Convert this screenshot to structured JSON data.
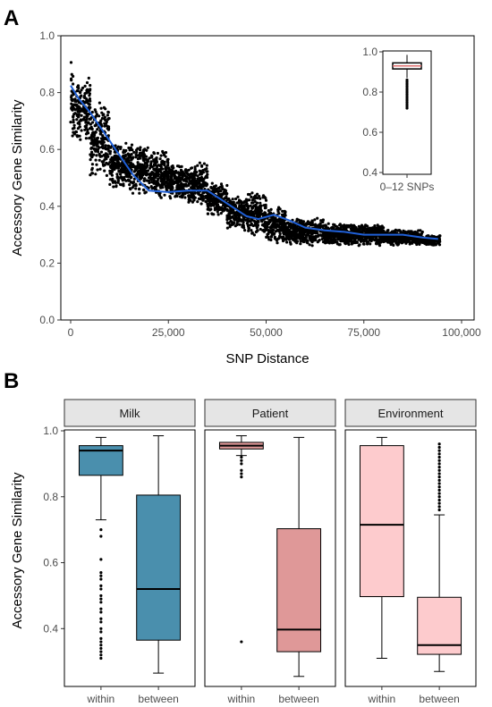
{
  "colors": {
    "scatter": "#000000",
    "smooth": "#1f5fd6",
    "milk": "#4a8fad",
    "patient": "#df9898",
    "environment": "#fdcbcd",
    "strip_fill": "#e5e5e5"
  },
  "chart_data": [
    {
      "panel": "A",
      "type": "scatter",
      "xlabel": "SNP Distance",
      "ylabel": "Accessory Gene Similarity",
      "xlim": [
        0,
        100000
      ],
      "ylim": [
        0,
        1
      ],
      "x_ticks": [
        0,
        25000,
        50000,
        75000,
        100000
      ],
      "x_tick_labels": [
        "0",
        "25,000",
        "50,000",
        "75,000",
        "100,000"
      ],
      "y_ticks": [
        0,
        0.2,
        0.4,
        0.6,
        0.8,
        1.0
      ],
      "y_tick_labels": [
        "0.0",
        "0.2",
        "0.4",
        "0.6",
        "0.8",
        "1.0"
      ],
      "smooth_line": {
        "x": [
          0,
          2000,
          5000,
          8000,
          12000,
          16000,
          20000,
          25000,
          30000,
          35000,
          40000,
          45000,
          48000,
          52000,
          56000,
          60000,
          65000,
          70000,
          75000,
          80000,
          85000,
          90000,
          94000
        ],
        "y": [
          0.825,
          0.78,
          0.73,
          0.67,
          0.59,
          0.51,
          0.455,
          0.45,
          0.455,
          0.455,
          0.41,
          0.365,
          0.355,
          0.37,
          0.35,
          0.325,
          0.315,
          0.31,
          0.3,
          0.3,
          0.3,
          0.29,
          0.285
        ]
      },
      "scatter_bands": [
        {
          "x0": 0,
          "x1": 600,
          "ymin": 0.58,
          "ymax": 0.99
        },
        {
          "x0": 600,
          "x1": 5000,
          "ymin": 0.62,
          "ymax": 0.86
        },
        {
          "x0": 5000,
          "x1": 10000,
          "ymin": 0.5,
          "ymax": 0.77
        },
        {
          "x0": 10000,
          "x1": 15000,
          "ymin": 0.46,
          "ymax": 0.63
        },
        {
          "x0": 15000,
          "x1": 20000,
          "ymin": 0.44,
          "ymax": 0.62
        },
        {
          "x0": 20000,
          "x1": 25000,
          "ymin": 0.42,
          "ymax": 0.6
        },
        {
          "x0": 25000,
          "x1": 30000,
          "ymin": 0.42,
          "ymax": 0.55
        },
        {
          "x0": 30000,
          "x1": 35000,
          "ymin": 0.4,
          "ymax": 0.56
        },
        {
          "x0": 35000,
          "x1": 40000,
          "ymin": 0.36,
          "ymax": 0.49
        },
        {
          "x0": 40000,
          "x1": 45000,
          "ymin": 0.31,
          "ymax": 0.44
        },
        {
          "x0": 45000,
          "x1": 50000,
          "ymin": 0.29,
          "ymax": 0.45
        },
        {
          "x0": 50000,
          "x1": 55000,
          "ymin": 0.27,
          "ymax": 0.4
        },
        {
          "x0": 55000,
          "x1": 65000,
          "ymin": 0.26,
          "ymax": 0.36
        },
        {
          "x0": 65000,
          "x1": 80000,
          "ymin": 0.26,
          "ymax": 0.34
        },
        {
          "x0": 80000,
          "x1": 90000,
          "ymin": 0.26,
          "ymax": 0.32
        },
        {
          "x0": 90000,
          "x1": 94500,
          "ymin": 0.26,
          "ymax": 0.3
        }
      ],
      "inset": {
        "type": "box",
        "category": "0–12 SNPs",
        "ylim": [
          0.4,
          1.0
        ],
        "y_ticks": [
          0.4,
          0.6,
          0.8,
          1.0
        ],
        "y_tick_labels": [
          "0.4",
          "0.6",
          "0.8",
          "1.0"
        ],
        "box": {
          "q1": 0.915,
          "median": 0.93,
          "q3": 0.945,
          "whisker_low": 0.87,
          "whisker_high": 0.985
        },
        "outliers": [
          0.86,
          0.85,
          0.84,
          0.83,
          0.82,
          0.81,
          0.8,
          0.79,
          0.78,
          0.77,
          0.76,
          0.75,
          0.74,
          0.73,
          0.72
        ]
      }
    },
    {
      "panel": "B",
      "type": "box",
      "ylabel": "Accessory Gene Similarity",
      "ylim": [
        0.23,
        1.0
      ],
      "y_ticks": [
        0.4,
        0.6,
        0.8,
        1.0
      ],
      "y_tick_labels": [
        "0.4",
        "0.6",
        "0.8",
        "1.0"
      ],
      "categories": [
        "within",
        "between"
      ],
      "facets": [
        {
          "name": "Milk",
          "color_key": "milk",
          "boxes": [
            {
              "category": "within",
              "q1": 0.865,
              "median": 0.94,
              "q3": 0.955,
              "whisker_low": 0.73,
              "whisker_high": 0.98,
              "outliers": [
                0.7,
                0.68,
                0.61,
                0.57,
                0.56,
                0.55,
                0.53,
                0.52,
                0.5,
                0.49,
                0.48,
                0.46,
                0.45,
                0.43,
                0.42,
                0.4,
                0.39,
                0.37,
                0.36,
                0.35,
                0.34,
                0.33,
                0.32,
                0.31
              ]
            },
            {
              "category": "between",
              "q1": 0.365,
              "median": 0.52,
              "q3": 0.805,
              "whisker_low": 0.265,
              "whisker_high": 0.985,
              "outliers": []
            }
          ]
        },
        {
          "name": "Patient",
          "color_key": "patient",
          "boxes": [
            {
              "category": "within",
              "q1": 0.945,
              "median": 0.955,
              "q3": 0.965,
              "whisker_low": 0.925,
              "whisker_high": 0.985,
              "outliers": [
                0.92,
                0.91,
                0.9,
                0.88,
                0.87,
                0.86,
                0.36
              ]
            },
            {
              "category": "between",
              "q1": 0.33,
              "median": 0.397,
              "q3": 0.703,
              "whisker_low": 0.255,
              "whisker_high": 0.98,
              "outliers": []
            }
          ]
        },
        {
          "name": "Environment",
          "color_key": "environment",
          "boxes": [
            {
              "category": "within",
              "q1": 0.497,
              "median": 0.715,
              "q3": 0.955,
              "whisker_low": 0.31,
              "whisker_high": 0.98,
              "outliers": []
            },
            {
              "category": "between",
              "q1": 0.322,
              "median": 0.35,
              "q3": 0.495,
              "whisker_low": 0.27,
              "whisker_high": 0.745,
              "outliers": [
                0.96,
                0.95,
                0.94,
                0.93,
                0.92,
                0.91,
                0.9,
                0.89,
                0.88,
                0.87,
                0.86,
                0.85,
                0.84,
                0.83,
                0.82,
                0.81,
                0.8,
                0.79,
                0.78,
                0.77,
                0.76
              ]
            }
          ]
        }
      ]
    }
  ],
  "labels": {
    "panel_a": "A",
    "panel_b": "B",
    "a_xlabel": "SNP Distance",
    "a_ylabel": "Accessory Gene Similarity",
    "b_ylabel": "Accessory Gene Similarity"
  }
}
